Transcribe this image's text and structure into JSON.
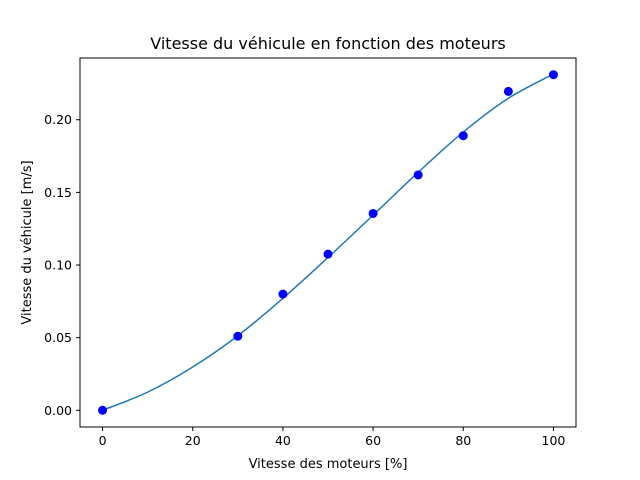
{
  "chart_data": {
    "type": "scatter",
    "title": "Vitesse du véhicule en fonction des moteurs",
    "xlabel": "Vitesse des moteurs [%]",
    "ylabel": "Vitesse du véhicule [m/s]",
    "xlim": [
      -5,
      105
    ],
    "ylim": [
      -0.0115,
      0.2425
    ],
    "xticks": [
      0,
      20,
      40,
      60,
      80,
      100
    ],
    "xtick_labels": [
      "0",
      "20",
      "40",
      "60",
      "80",
      "100"
    ],
    "yticks": [
      0.0,
      0.05,
      0.1,
      0.15,
      0.2
    ],
    "ytick_labels": [
      "0.00",
      "0.05",
      "0.10",
      "0.15",
      "0.20"
    ],
    "grid": false,
    "series": [
      {
        "kind": "scatter",
        "color": "#0000ff",
        "x": [
          0,
          30,
          40,
          50,
          60,
          70,
          80,
          90,
          100
        ],
        "y": [
          0.0,
          0.051,
          0.08,
          0.1075,
          0.1355,
          0.162,
          0.189,
          0.2195,
          0.231
        ]
      },
      {
        "kind": "line",
        "color": "#1f77b4",
        "x": [
          0,
          10,
          20,
          30,
          40,
          50,
          60,
          70,
          80,
          90,
          100
        ],
        "y": [
          0.0,
          0.0125,
          0.0298,
          0.0513,
          0.0771,
          0.1052,
          0.1343,
          0.1638,
          0.1915,
          0.2148,
          0.2315
        ]
      }
    ]
  }
}
